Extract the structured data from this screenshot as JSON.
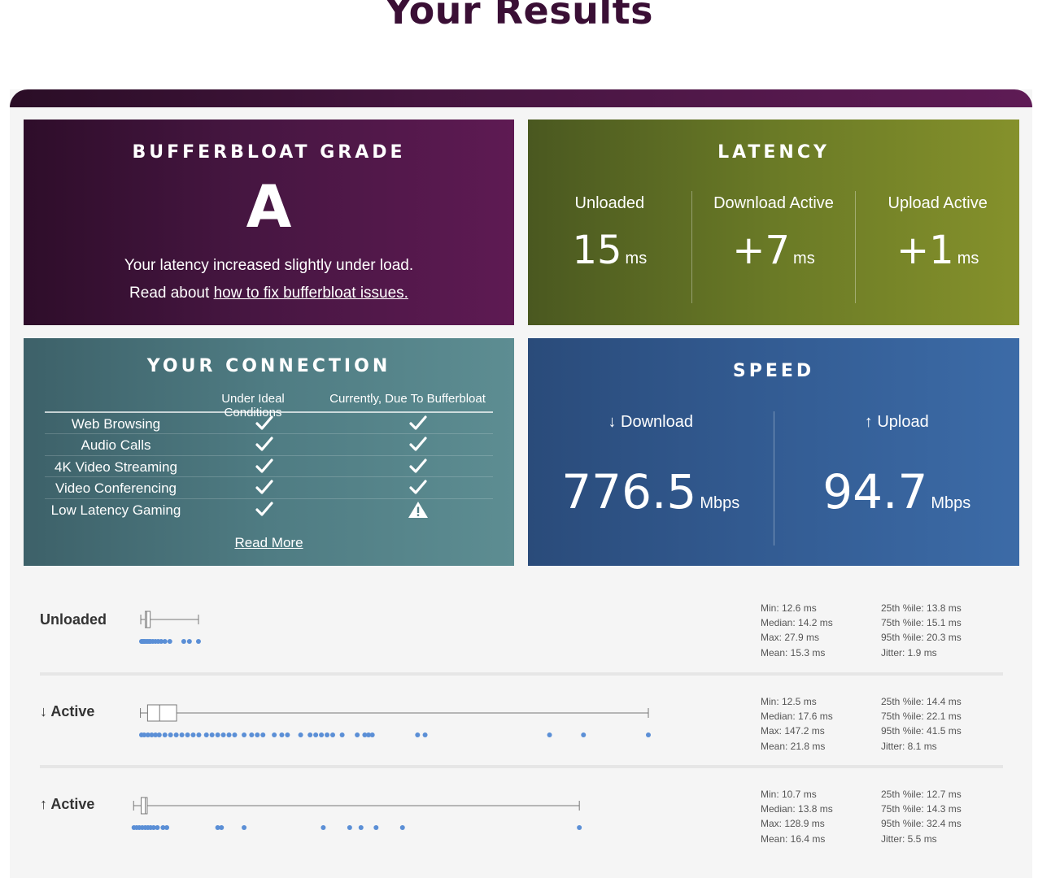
{
  "page_title": "Your Results",
  "grade": {
    "title": "BUFFERBLOAT GRADE",
    "letter": "A",
    "summary": "Your latency increased slightly under load.",
    "read_prefix": "Read about ",
    "read_link": "how to fix bufferbloat issues."
  },
  "latency": {
    "title": "LATENCY",
    "columns": [
      {
        "label": "Unloaded",
        "value": "15",
        "unit": "ms"
      },
      {
        "label": "Download Active",
        "value": "+7",
        "unit": "ms"
      },
      {
        "label": "Upload Active",
        "value": "+1",
        "unit": "ms"
      }
    ]
  },
  "connection": {
    "title": "YOUR CONNECTION",
    "col_ideal": "Under Ideal Conditions",
    "col_now": "Currently, Due To Bufferbloat",
    "rows": [
      {
        "name": "Web Browsing",
        "ideal": "check",
        "now": "check"
      },
      {
        "name": "Audio Calls",
        "ideal": "check",
        "now": "check"
      },
      {
        "name": "4K Video Streaming",
        "ideal": "check",
        "now": "check"
      },
      {
        "name": "Video Conferencing",
        "ideal": "check",
        "now": "check"
      },
      {
        "name": "Low Latency Gaming",
        "ideal": "check",
        "now": "warning"
      }
    ],
    "read_more": "Read More"
  },
  "speed": {
    "title": "SPEED",
    "download_label": "↓ Download",
    "download_value": "776.5",
    "download_unit": "Mbps",
    "upload_label": "↑ Upload",
    "upload_value": "94.7",
    "upload_unit": "Mbps"
  },
  "stats": [
    {
      "label": "Unloaded",
      "left": [
        "Min: 12.6 ms",
        "Median: 14.2 ms",
        "Max: 27.9 ms",
        "Mean: 15.3 ms"
      ],
      "right": [
        "25th %ile: 13.8 ms",
        "75th %ile: 15.1 ms",
        "95th %ile: 20.3 ms",
        "Jitter: 1.9 ms"
      ],
      "box": {
        "min": 12.6,
        "q1": 13.8,
        "median": 14.2,
        "q3": 15.1,
        "max": 27.9
      },
      "outliers": [
        12.8,
        13.0,
        13.3,
        13.6,
        14.0,
        14.4,
        14.8,
        15.2,
        15.8,
        16.5,
        17.2,
        18.0,
        19.0,
        20.3,
        24.0,
        25.5,
        27.9
      ]
    },
    {
      "label": "↓ Active",
      "left": [
        "Min: 12.5 ms",
        "Median: 17.6 ms",
        "Max: 147.2 ms",
        "Mean: 21.8 ms"
      ],
      "right": [
        "25th %ile: 14.4 ms",
        "75th %ile: 22.1 ms",
        "95th %ile: 41.5 ms",
        "Jitter: 8.1 ms"
      ],
      "box": {
        "min": 12.5,
        "q1": 14.4,
        "median": 17.6,
        "q3": 22.1,
        "max": 147.2
      },
      "outliers": [
        12.8,
        13.5,
        14.5,
        15.5,
        16.5,
        17.5,
        19,
        20.5,
        22,
        23.5,
        25,
        26.5,
        28,
        30,
        31.5,
        33,
        34.5,
        36,
        37.5,
        40,
        42,
        43.5,
        45,
        48,
        50,
        51.5,
        55,
        57.5,
        59,
        60.5,
        62,
        63.5,
        66,
        70,
        72,
        73,
        74,
        86,
        88,
        121,
        130,
        147.2
      ]
    },
    {
      "label": "↑ Active",
      "left": [
        "Min: 10.7 ms",
        "Median: 13.8 ms",
        "Max: 128.9 ms",
        "Mean: 16.4 ms"
      ],
      "right": [
        "25th %ile: 12.7 ms",
        "75th %ile: 14.3 ms",
        "95th %ile: 32.4 ms",
        "Jitter: 5.5 ms"
      ],
      "box": {
        "min": 10.7,
        "q1": 12.7,
        "median": 13.8,
        "q3": 14.3,
        "max": 128.9
      },
      "outliers": [
        10.8,
        11.5,
        12.2,
        13.0,
        13.8,
        14.5,
        15.2,
        16.0,
        17.0,
        18.5,
        19.5,
        33,
        34,
        40,
        61,
        68,
        71,
        75,
        82,
        128.9
      ]
    }
  ]
}
